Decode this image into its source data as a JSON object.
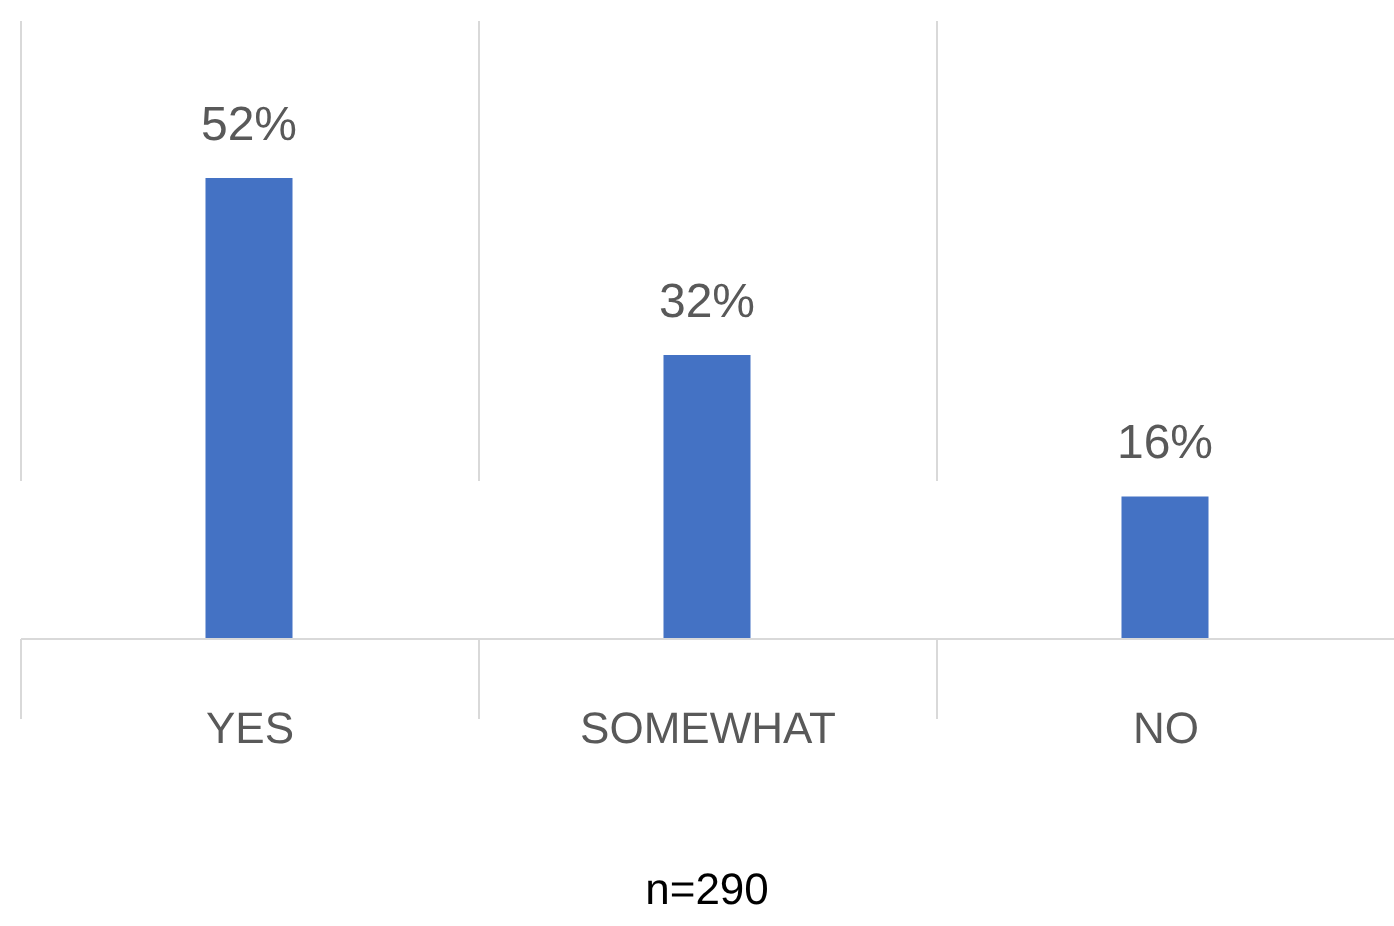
{
  "chart_data": {
    "type": "bar",
    "categories": [
      "YES",
      "SOMEWHAT",
      "NO"
    ],
    "values": [
      52,
      32,
      16
    ],
    "value_labels": [
      "52%",
      "32%",
      "16%"
    ],
    "color": "#4472c4",
    "grid": "x",
    "annotations": [
      "n=290"
    ]
  }
}
